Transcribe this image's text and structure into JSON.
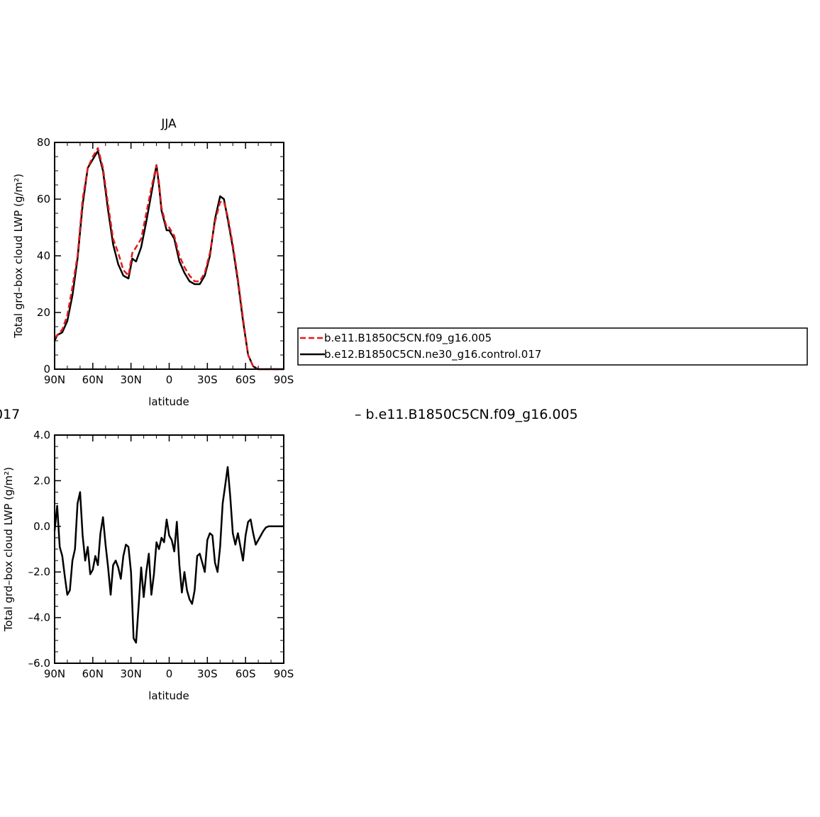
{
  "colors": {
    "model_a": "#e41a1c",
    "model_b": "#000000"
  },
  "legend": {
    "entries": [
      "b.e11.B1850C5CN.f09_g16.005",
      "b.e12.B1850C5CN.ne30_g16.control.017"
    ],
    "placement": "right"
  },
  "clipped_texts": {
    "left_fragment": "017",
    "right_fragment": "– b.e11.B1850C5CN.f09_g16.005"
  },
  "chart_data": [
    {
      "type": "line",
      "title": "JJA",
      "xlabel": "latitude",
      "ylabel": "Total grd–box cloud LWP (g/m²)",
      "xlim": [
        90,
        -90
      ],
      "ylim": [
        0,
        80
      ],
      "x_ticks": [
        "90N",
        "60N",
        "30N",
        "0",
        "30S",
        "60S",
        "90S"
      ],
      "y_ticks": [
        "0",
        "20",
        "40",
        "60",
        "80"
      ],
      "grid": false,
      "x": [
        90,
        88,
        84,
        80,
        76,
        72,
        68,
        64,
        60,
        56,
        52,
        48,
        44,
        40,
        36,
        32,
        29,
        26,
        22,
        18,
        14,
        10,
        8,
        6,
        2,
        0,
        -4,
        -8,
        -12,
        -16,
        -20,
        -24,
        -28,
        -32,
        -36,
        -40,
        -43,
        -46,
        -50,
        -54,
        -58,
        -62,
        -66,
        -70,
        -74,
        -80,
        -90
      ],
      "series": [
        {
          "name": "b.e11.B1850C5CN.f09_g16.005",
          "style": "dashed",
          "values": [
            11,
            12,
            14,
            19,
            29,
            40,
            60,
            71,
            75,
            78,
            71,
            58,
            46,
            41,
            35,
            33,
            41,
            43,
            46,
            55,
            64,
            72,
            66,
            57,
            50,
            50,
            47,
            40,
            36,
            33,
            31,
            31,
            34,
            41,
            52,
            59,
            59,
            54,
            44,
            32,
            18,
            5,
            1,
            0,
            0,
            0,
            0
          ]
        },
        {
          "name": "b.e12.B1850C5CN.ne30_g16.control.017",
          "style": "solid",
          "values": [
            10,
            12,
            13,
            17,
            26,
            39,
            58,
            71,
            74,
            77,
            70,
            56,
            44,
            37,
            33,
            32,
            39,
            38,
            43,
            52,
            62,
            72,
            65,
            56,
            49,
            49,
            46,
            38,
            34,
            31,
            30,
            30,
            33,
            40,
            53,
            61,
            60,
            53,
            43,
            31,
            17,
            5,
            1,
            0,
            0,
            0,
            0
          ]
        }
      ]
    },
    {
      "type": "line",
      "title": "",
      "xlabel": "latitude",
      "ylabel": "Total grd–box cloud LWP (g/m²)",
      "xlim": [
        90,
        -90
      ],
      "ylim": [
        -6,
        4
      ],
      "x_ticks": [
        "90N",
        "60N",
        "30N",
        "0",
        "30S",
        "60S",
        "90S"
      ],
      "y_ticks": [
        "4.0",
        "2.0",
        "0.0",
        "–2.0",
        "–4.0",
        "–6.0"
      ],
      "grid": false,
      "x": [
        90,
        88,
        86,
        84,
        82,
        80,
        78,
        76,
        74,
        72,
        70,
        68,
        66,
        64,
        62,
        60,
        58,
        56,
        54,
        52,
        50,
        48,
        46,
        44,
        42,
        40,
        38,
        36,
        34,
        32,
        30,
        28,
        26,
        24,
        22,
        20,
        18,
        16,
        14,
        12,
        10,
        8,
        6,
        4,
        2,
        0,
        -2,
        -4,
        -6,
        -8,
        -10,
        -12,
        -14,
        -16,
        -18,
        -20,
        -22,
        -24,
        -26,
        -28,
        -30,
        -32,
        -34,
        -36,
        -38,
        -40,
        -42,
        -44,
        -46,
        -48,
        -50,
        -52,
        -54,
        -56,
        -58,
        -60,
        -62,
        -64,
        -66,
        -68,
        -70,
        -72,
        -74,
        -76,
        -78,
        -80,
        -84,
        -90
      ],
      "series": [
        {
          "name": "",
          "style": "solid",
          "values": [
            -0.2,
            0.9,
            -0.9,
            -1.3,
            -2.2,
            -3.0,
            -2.8,
            -1.5,
            -1.0,
            1.0,
            1.5,
            -0.4,
            -1.5,
            -0.9,
            -2.1,
            -1.9,
            -1.3,
            -1.7,
            -0.3,
            0.4,
            -0.8,
            -1.8,
            -3.0,
            -1.7,
            -1.5,
            -1.8,
            -2.3,
            -1.3,
            -0.8,
            -0.9,
            -2.0,
            -4.9,
            -5.1,
            -3.5,
            -1.8,
            -3.1,
            -2.0,
            -1.2,
            -3.0,
            -2.1,
            -0.7,
            -1.0,
            -0.5,
            -0.7,
            0.3,
            -0.4,
            -0.6,
            -1.1,
            0.2,
            -1.7,
            -2.9,
            -2.0,
            -2.8,
            -3.2,
            -3.4,
            -2.8,
            -1.3,
            -1.2,
            -1.6,
            -2.0,
            -0.6,
            -0.3,
            -0.4,
            -1.6,
            -2.0,
            -0.9,
            1.0,
            1.8,
            2.6,
            1.3,
            -0.3,
            -0.8,
            -0.3,
            -0.9,
            -1.5,
            -0.4,
            0.2,
            0.3,
            -0.3,
            -0.8,
            -0.6,
            -0.4,
            -0.2,
            -0.05,
            0.0,
            0.0,
            0.0,
            0.0
          ]
        }
      ]
    }
  ]
}
